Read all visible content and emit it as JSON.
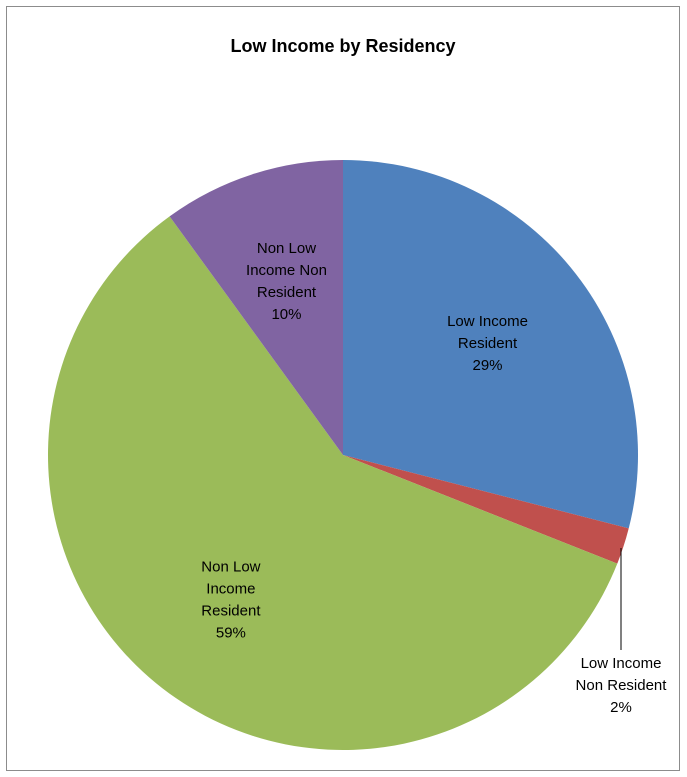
{
  "chart_data": {
    "type": "pie",
    "title": "Low Income by Residency",
    "slices": [
      {
        "label_lines": [
          "Low Income",
          "Resident"
        ],
        "percent_label": "29%",
        "value": 29,
        "color": "#4f81bd"
      },
      {
        "label_lines": [
          "Low Income",
          "Non Resident"
        ],
        "percent_label": "2%",
        "value": 2,
        "color": "#c0504d"
      },
      {
        "label_lines": [
          "Non Low",
          "Income",
          "Resident"
        ],
        "percent_label": "59%",
        "value": 59,
        "color": "#9bbb59"
      },
      {
        "label_lines": [
          "Non Low",
          "Income Non",
          "Resident"
        ],
        "percent_label": "10%",
        "value": 10,
        "color": "#8064a2"
      }
    ]
  }
}
